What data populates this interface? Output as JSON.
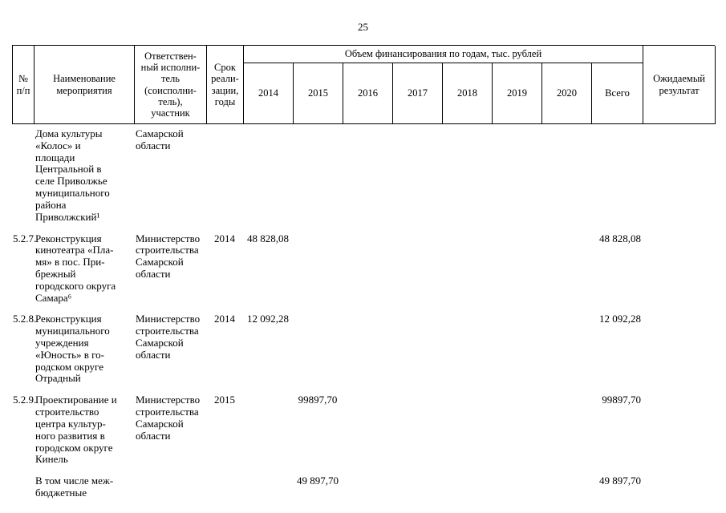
{
  "page": {
    "number": "25"
  },
  "header": {
    "num": "№\nп/п",
    "name": "Наименование\nмероприятия",
    "executor": "Ответствен-\nный исполни-\nтель\n(соисполни-\nтель),\nучастник",
    "term": "Срок\nреали-\nзации,\nгоды",
    "financing_span": "Объем финансирования по годам, тыс. рублей",
    "years": [
      "2014",
      "2015",
      "2016",
      "2017",
      "2018",
      "2019",
      "2020"
    ],
    "total": "Всего",
    "result": "Ожидаемый\nрезультат"
  },
  "rows": [
    {
      "num": "",
      "name": "Дома культуры\n«Колос» и\nплощади\nЦентральной в\nселе Приволжье\nмуниципального\nрайона\nПриволжский¹",
      "executor": "Самарской\nобласти",
      "term": "",
      "values": [
        "",
        "",
        "",
        "",
        "",
        "",
        ""
      ],
      "total": "",
      "result": ""
    },
    {
      "num": "5.2.7.",
      "name": "Реконструкция\nкинотеатра «Пла-\nмя» в пос. При-\nбрежный\nгородского округа\nСамара⁶",
      "executor": "Министерство\nстроительства\nСамарской\nобласти",
      "term": "2014",
      "values": [
        "48 828,08",
        "",
        "",
        "",
        "",
        "",
        ""
      ],
      "total": "48 828,08",
      "result": ""
    },
    {
      "num": "5.2.8.",
      "name": "Реконструкция\nмуниципального\nучреждения\n«Юность» в го-\nродском округе\nОтрадный",
      "executor": "Министерство\nстроительства\nСамарской\nобласти",
      "term": "2014",
      "values": [
        "12 092,28",
        "",
        "",
        "",
        "",
        "",
        ""
      ],
      "total": "12 092,28",
      "result": ""
    },
    {
      "num": "5.2.9.",
      "name": "Проектирование и\nстроительство\nцентра культур-\nного развития в\nгородском округе\nКинель",
      "executor": "Министерство\nстроительства\nСамарской\nобласти",
      "term": "2015",
      "values": [
        "",
        "99897,70",
        "",
        "",
        "",
        "",
        ""
      ],
      "total": "99897,70",
      "result": ""
    },
    {
      "num": "",
      "name": "В том числе меж-\nбюджетные",
      "executor": "",
      "term": "",
      "values": [
        "",
        "49 897,70",
        "",
        "",
        "",
        "",
        ""
      ],
      "total": "49 897,70",
      "result": ""
    }
  ]
}
